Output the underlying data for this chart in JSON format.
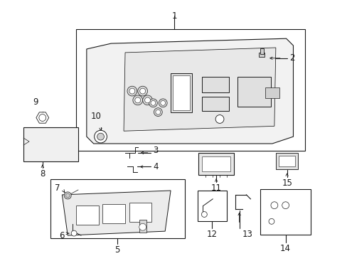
{
  "bg_color": "#ffffff",
  "line_color": "#1a1a1a",
  "fig_width": 4.89,
  "fig_height": 3.6,
  "dpi": 100,
  "label_fs": 8.5,
  "lw": 0.8
}
